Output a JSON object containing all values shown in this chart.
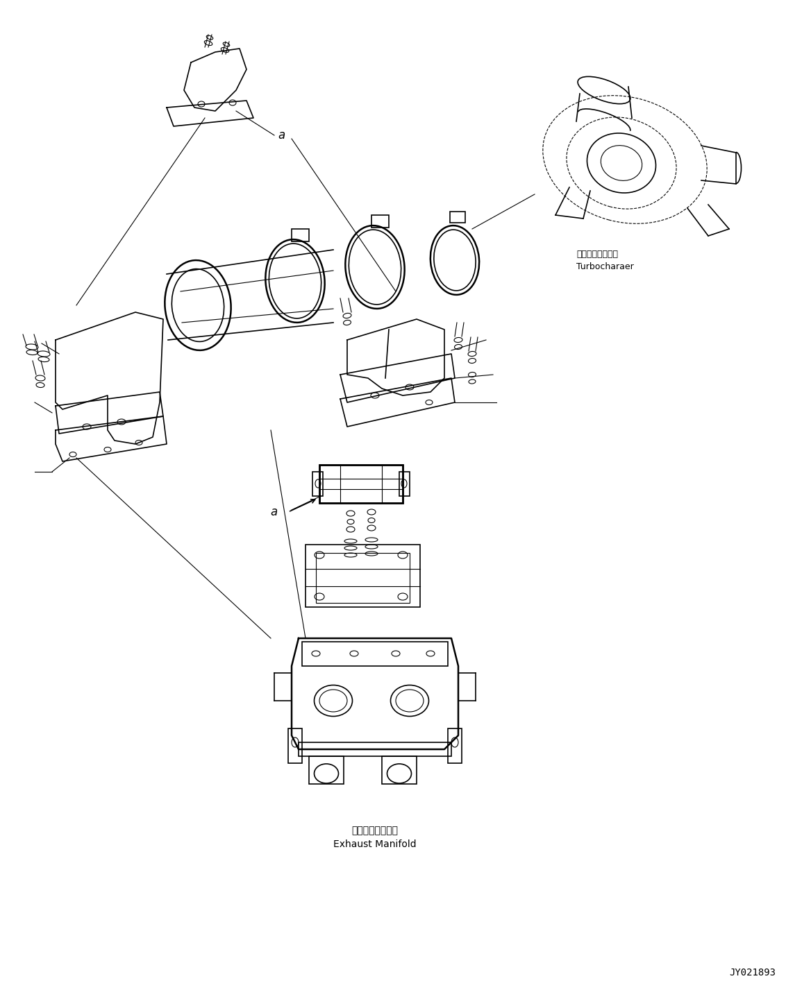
{
  "title": "",
  "background_color": "#ffffff",
  "line_color": "#000000",
  "figure_width": 11.68,
  "figure_height": 14.14,
  "dpi": 100,
  "label_turbocharger_jp": "ターボチャージャ",
  "label_turbocharger_en": "Turbocharaer",
  "label_exhaust_jp": "排気マニホールド",
  "label_exhaust_en": "Exhaust Manifold",
  "label_drawing_number": "JY021893",
  "label_a": "a"
}
